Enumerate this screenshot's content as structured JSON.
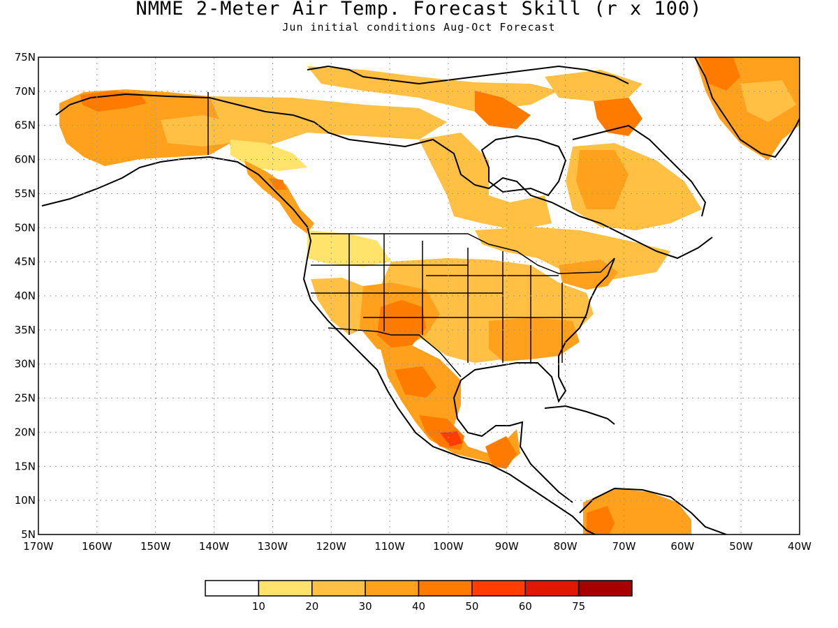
{
  "header": {
    "title": "NMME 2-Meter Air Temp. Forecast Skill (r x 100)",
    "subtitle": "Jun initial conditions  Aug-Oct Forecast"
  },
  "map": {
    "lat_labels": [
      "75N",
      "70N",
      "65N",
      "60N",
      "55N",
      "50N",
      "45N",
      "40N",
      "35N",
      "30N",
      "25N",
      "20N",
      "15N",
      "10N",
      "5N"
    ],
    "lon_labels": [
      "170W",
      "160W",
      "150W",
      "140W",
      "130W",
      "120W",
      "110W",
      "100W",
      "90W",
      "80W",
      "70W",
      "60W",
      "50W",
      "40W"
    ],
    "lat_range": [
      5,
      75
    ],
    "lon_range": [
      -170,
      -40
    ]
  },
  "legend": {
    "colors": [
      "#ffffff",
      "#ffe36b",
      "#ffc044",
      "#ffa11c",
      "#ff7b00",
      "#ff3e00",
      "#e01800",
      "#a60000"
    ],
    "labels": [
      "10",
      "20",
      "30",
      "40",
      "50",
      "60",
      "75"
    ]
  }
}
